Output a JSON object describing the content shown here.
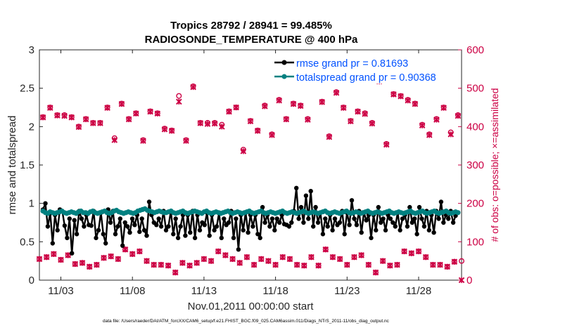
{
  "chart_data": {
    "type": "line",
    "title": "Tropics 28792 / 28941 = 99.485%",
    "subtitle": "RADIOSONDE_TEMPERATURE @ 400 hPa",
    "xlabel": "Nov.01,2011 00:00:00 start",
    "ylabel_left": "rmse and totalspread",
    "ylabel_right": "# of obs: o=possible; ×=assimilated",
    "footnote": "data file: /Users/raeder/DAI/ATM_forcXX/CAM6_setup/f.e21.FHIST_BGC.f09_025.CAM6assim.011/Diags_NTrS_2011-11/obs_diag_output.nc",
    "x_unit": "days since start (tick labels are dates)",
    "xlim": [
      0.5,
      30.0
    ],
    "x_ticks": [
      {
        "x": 2,
        "label": "11/03"
      },
      {
        "x": 7,
        "label": "11/08"
      },
      {
        "x": 12,
        "label": "11/13"
      },
      {
        "x": 17,
        "label": "11/18"
      },
      {
        "x": 22,
        "label": "11/23"
      },
      {
        "x": 27,
        "label": "11/28"
      }
    ],
    "ylim_left": [
      0,
      3
    ],
    "y_ticks_left": [
      "0",
      "0.5",
      "1",
      "1.5",
      "2",
      "2.5",
      "3"
    ],
    "ylim_right": [
      0,
      600
    ],
    "y_ticks_right": [
      "0",
      "100",
      "200",
      "300",
      "400",
      "500",
      "600"
    ],
    "legend_position": "top-right",
    "grid": false,
    "series": [
      {
        "name": "rmse grand pr = 0.81693",
        "color": "#000000",
        "axis": "left",
        "marker": "circle",
        "values": [
          0.92,
          1.0,
          0.7,
          0.87,
          0.48,
          0.85,
          0.65,
          0.92,
          0.9,
          0.71,
          0.55,
          0.8,
          0.35,
          0.78,
          0.6,
          0.9,
          0.8,
          0.7,
          0.85,
          0.72,
          0.71,
          0.9,
          0.55,
          0.65,
          0.88,
          0.6,
          0.48,
          0.92,
          0.75,
          0.9,
          0.6,
          0.7,
          0.8,
          0.45,
          0.75,
          0.7,
          0.62,
          0.8,
          0.72,
          0.85,
          0.63,
          0.8,
          0.65,
          0.58,
          1.02,
          0.85,
          0.75,
          0.72,
          0.8,
          0.7,
          0.9,
          0.65,
          0.7,
          0.9,
          0.6,
          0.8,
          0.55,
          0.7,
          0.85,
          0.58,
          0.85,
          0.62,
          0.9,
          0.55,
          0.85,
          0.65,
          0.75,
          0.72,
          0.88,
          0.58,
          0.85,
          0.65,
          0.7,
          0.88,
          0.55,
          0.8,
          0.72,
          0.75,
          0.9,
          0.55,
          0.8,
          0.4,
          0.85,
          0.65,
          0.88,
          0.62,
          0.85,
          0.7,
          0.85,
          0.6,
          0.55,
          0.95,
          0.75,
          0.85,
          0.7,
          0.8,
          0.65,
          0.8,
          0.75,
          0.85,
          0.73,
          0.72,
          0.7,
          0.75,
          0.9,
          1.2,
          0.8,
          0.95,
          0.75,
          1.1,
          0.8,
          1.16,
          0.7,
          0.95,
          0.75,
          0.88,
          0.6,
          0.8,
          0.7,
          0.85,
          0.65,
          0.8,
          0.72,
          0.75,
          0.9,
          0.6,
          0.88,
          0.72,
          1.04,
          0.8,
          0.72,
          0.9,
          0.62,
          0.88,
          0.78,
          0.85,
          0.55,
          0.85,
          0.65,
          0.95,
          0.75,
          0.8,
          0.65,
          0.85,
          0.8,
          0.75,
          0.7,
          0.88,
          0.65,
          0.8,
          0.85,
          0.7,
          0.95,
          0.75,
          0.8,
          0.6,
          0.95,
          0.8,
          0.7,
          0.9,
          0.65,
          0.85,
          0.62,
          0.9,
          0.8,
          1.02,
          0.75,
          0.85,
          0.8,
          0.9,
          0.75,
          0.84,
          0.88
        ]
      },
      {
        "name": "totalspread grand pr = 0.90368",
        "color": "#008080",
        "axis": "left",
        "marker": "circle",
        "values": [
          0.9,
          0.88,
          0.87,
          0.89,
          0.88,
          0.87,
          0.88,
          0.89,
          0.9,
          0.88,
          0.87,
          0.88,
          0.89,
          0.88,
          0.87,
          0.89,
          0.9,
          0.88,
          0.88,
          0.87,
          0.89,
          0.9,
          0.88,
          0.87,
          0.88,
          0.89,
          0.9,
          0.88,
          0.87,
          0.88,
          0.9,
          0.91,
          0.89,
          0.88,
          0.87,
          0.88,
          0.89,
          0.88,
          0.87,
          0.88,
          0.9,
          0.91,
          0.92,
          0.93,
          0.91,
          0.9,
          0.89,
          0.88,
          0.89,
          0.9,
          0.89,
          0.88,
          0.88,
          0.89,
          0.9,
          0.88,
          0.87,
          0.88,
          0.89,
          0.9,
          0.88,
          0.87,
          0.88,
          0.89,
          0.9,
          0.89,
          0.88,
          0.87,
          0.89,
          0.9,
          0.88,
          0.87,
          0.88,
          0.89,
          0.88,
          0.87,
          0.88,
          0.89,
          0.9,
          0.88,
          0.87,
          0.88,
          0.89,
          0.88,
          0.87,
          0.88,
          0.89,
          0.9,
          0.88,
          0.87,
          0.88,
          0.89,
          0.9,
          0.88,
          0.87,
          0.88,
          0.89,
          0.88,
          0.87,
          0.88,
          0.89,
          0.9,
          0.88,
          0.87,
          0.88,
          0.89,
          0.88,
          0.87,
          0.88,
          0.89,
          0.9,
          0.88,
          0.87,
          0.88,
          0.89,
          0.88,
          0.87,
          0.88,
          0.89,
          0.9,
          0.88,
          0.87,
          0.88,
          0.89,
          0.88,
          0.87,
          0.88,
          0.89,
          0.9,
          0.88,
          0.87,
          0.88,
          0.89,
          0.88,
          0.87,
          0.88,
          0.89,
          0.9,
          0.88,
          0.87,
          0.88,
          0.89,
          0.88,
          0.87,
          0.88,
          0.89,
          0.9,
          0.88,
          0.87,
          0.88,
          0.89,
          0.88,
          0.87,
          0.88,
          0.89,
          0.9,
          0.88,
          0.87,
          0.88,
          0.89,
          0.9,
          0.88,
          0.87,
          0.88,
          0.89,
          0.9,
          0.88,
          0.87,
          0.88,
          0.89,
          0.9,
          0.88,
          0.87,
          0.88,
          0.89,
          0.88
        ]
      },
      {
        "name": "obs possible (upper band)",
        "color": "#cc0044",
        "axis": "right",
        "marker": "o",
        "x": [
          0.75,
          1.25,
          1.75,
          2.25,
          2.75,
          3.25,
          3.75,
          4.25,
          4.75,
          5.25,
          5.75,
          6.25,
          6.75,
          7.25,
          7.75,
          8.25,
          8.75,
          9.25,
          9.75,
          10.25,
          10.75,
          11.25,
          11.75,
          12.25,
          12.75,
          13.25,
          13.75,
          14.25,
          14.75,
          15.25,
          15.75,
          16.25,
          16.75,
          17.25,
          17.75,
          18.25,
          18.75,
          19.25,
          19.75,
          20.25,
          20.75,
          21.25,
          21.75,
          22.25,
          22.75,
          23.25,
          23.75,
          24.25,
          24.75,
          25.25,
          25.75,
          26.25,
          26.75,
          27.25,
          27.75,
          28.25,
          28.75,
          29.25,
          29.75
        ],
        "values": [
          425,
          450,
          430,
          430,
          425,
          400,
          420,
          410,
          410,
          450,
          370,
          460,
          420,
          435,
          365,
          440,
          435,
          395,
          390,
          480,
          365,
          505,
          410,
          410,
          410,
          405,
          440,
          450,
          340,
          415,
          390,
          455,
          380,
          470,
          420,
          460,
          455,
          420,
          535,
          465,
          375,
          490,
          450,
          415,
          440,
          435,
          410,
          520,
          355,
          485,
          480,
          470,
          460,
          405,
          380,
          420,
          450,
          385,
          430
        ]
      },
      {
        "name": "obs assimilated (upper band)",
        "color": "#cc0044",
        "axis": "right",
        "marker": "x",
        "x": [
          0.75,
          1.25,
          1.75,
          2.25,
          2.75,
          3.25,
          3.75,
          4.25,
          4.75,
          5.25,
          5.75,
          6.25,
          6.75,
          7.25,
          7.75,
          8.25,
          8.75,
          9.25,
          9.75,
          10.25,
          10.75,
          11.25,
          11.75,
          12.25,
          12.75,
          13.25,
          13.75,
          14.25,
          14.75,
          15.25,
          15.75,
          16.25,
          16.75,
          17.25,
          17.75,
          18.25,
          18.75,
          19.25,
          19.75,
          20.25,
          20.75,
          21.25,
          21.75,
          22.25,
          22.75,
          23.25,
          23.75,
          24.25,
          24.75,
          25.25,
          25.75,
          26.25,
          26.75,
          27.25,
          27.75,
          28.25,
          28.75,
          29.25,
          29.75
        ],
        "values": [
          424,
          449,
          429,
          428,
          424,
          399,
          419,
          409,
          409,
          449,
          365,
          459,
          419,
          434,
          363,
          439,
          434,
          393,
          389,
          465,
          363,
          503,
          409,
          407,
          408,
          400,
          439,
          450,
          336,
          414,
          389,
          453,
          378,
          468,
          419,
          459,
          454,
          418,
          532,
          464,
          373,
          488,
          449,
          414,
          439,
          433,
          408,
          518,
          353,
          484,
          479,
          468,
          459,
          403,
          378,
          418,
          449,
          380,
          428
        ]
      },
      {
        "name": "obs possible (lower band)",
        "color": "#cc0044",
        "axis": "right",
        "marker": "o",
        "x": [
          0.5,
          1.0,
          1.5,
          2.0,
          2.5,
          3.0,
          3.5,
          4.0,
          4.5,
          5.0,
          5.5,
          6.0,
          6.5,
          7.0,
          7.5,
          8.0,
          8.5,
          9.0,
          9.5,
          10.0,
          10.5,
          11.0,
          11.5,
          12.0,
          12.5,
          13.0,
          13.5,
          14.0,
          14.5,
          15.0,
          15.5,
          16.0,
          16.5,
          17.0,
          17.5,
          18.0,
          18.5,
          19.0,
          19.5,
          20.0,
          20.5,
          21.0,
          21.5,
          22.0,
          22.5,
          23.0,
          23.5,
          24.0,
          24.5,
          25.0,
          25.5,
          26.0,
          26.5,
          27.0,
          27.5,
          28.0,
          28.5,
          29.0,
          29.5,
          30.0
        ],
        "values": [
          55,
          60,
          68,
          53,
          65,
          42,
          45,
          35,
          40,
          58,
          62,
          55,
          80,
          68,
          75,
          50,
          40,
          40,
          38,
          20,
          45,
          38,
          45,
          55,
          50,
          75,
          65,
          55,
          45,
          60,
          40,
          55,
          50,
          40,
          60,
          55,
          40,
          38,
          60,
          38,
          80,
          60,
          55,
          40,
          60,
          65,
          40,
          20,
          50,
          38,
          40,
          75,
          70,
          75,
          60,
          40,
          40,
          35,
          48,
          50
        ]
      },
      {
        "name": "obs assimilated (lower band)",
        "color": "#cc0044",
        "axis": "right",
        "marker": "x",
        "x": [
          0.5,
          1.0,
          1.5,
          2.0,
          2.5,
          3.0,
          3.5,
          4.0,
          4.5,
          5.0,
          5.5,
          6.0,
          6.5,
          7.0,
          7.5,
          8.0,
          8.5,
          9.0,
          9.5,
          10.0,
          10.5,
          11.0,
          11.5,
          12.0,
          12.5,
          13.0,
          13.5,
          14.0,
          14.5,
          15.0,
          15.5,
          16.0,
          16.5,
          17.0,
          17.5,
          18.0,
          18.5,
          19.0,
          19.5,
          20.0,
          20.5,
          21.0,
          21.5,
          22.0,
          22.5,
          23.0,
          23.5,
          24.0,
          24.5,
          25.0,
          25.5,
          26.0,
          26.5,
          27.0,
          27.5,
          28.0,
          28.5,
          29.0,
          29.5,
          30.0
        ],
        "values": [
          55,
          60,
          68,
          53,
          65,
          42,
          45,
          35,
          40,
          58,
          62,
          55,
          80,
          68,
          75,
          50,
          40,
          40,
          38,
          20,
          45,
          38,
          45,
          55,
          50,
          75,
          65,
          55,
          45,
          60,
          40,
          55,
          50,
          40,
          60,
          55,
          40,
          38,
          60,
          38,
          80,
          60,
          55,
          40,
          60,
          65,
          40,
          20,
          50,
          38,
          40,
          75,
          70,
          75,
          60,
          40,
          40,
          35,
          48,
          0
        ]
      }
    ]
  }
}
